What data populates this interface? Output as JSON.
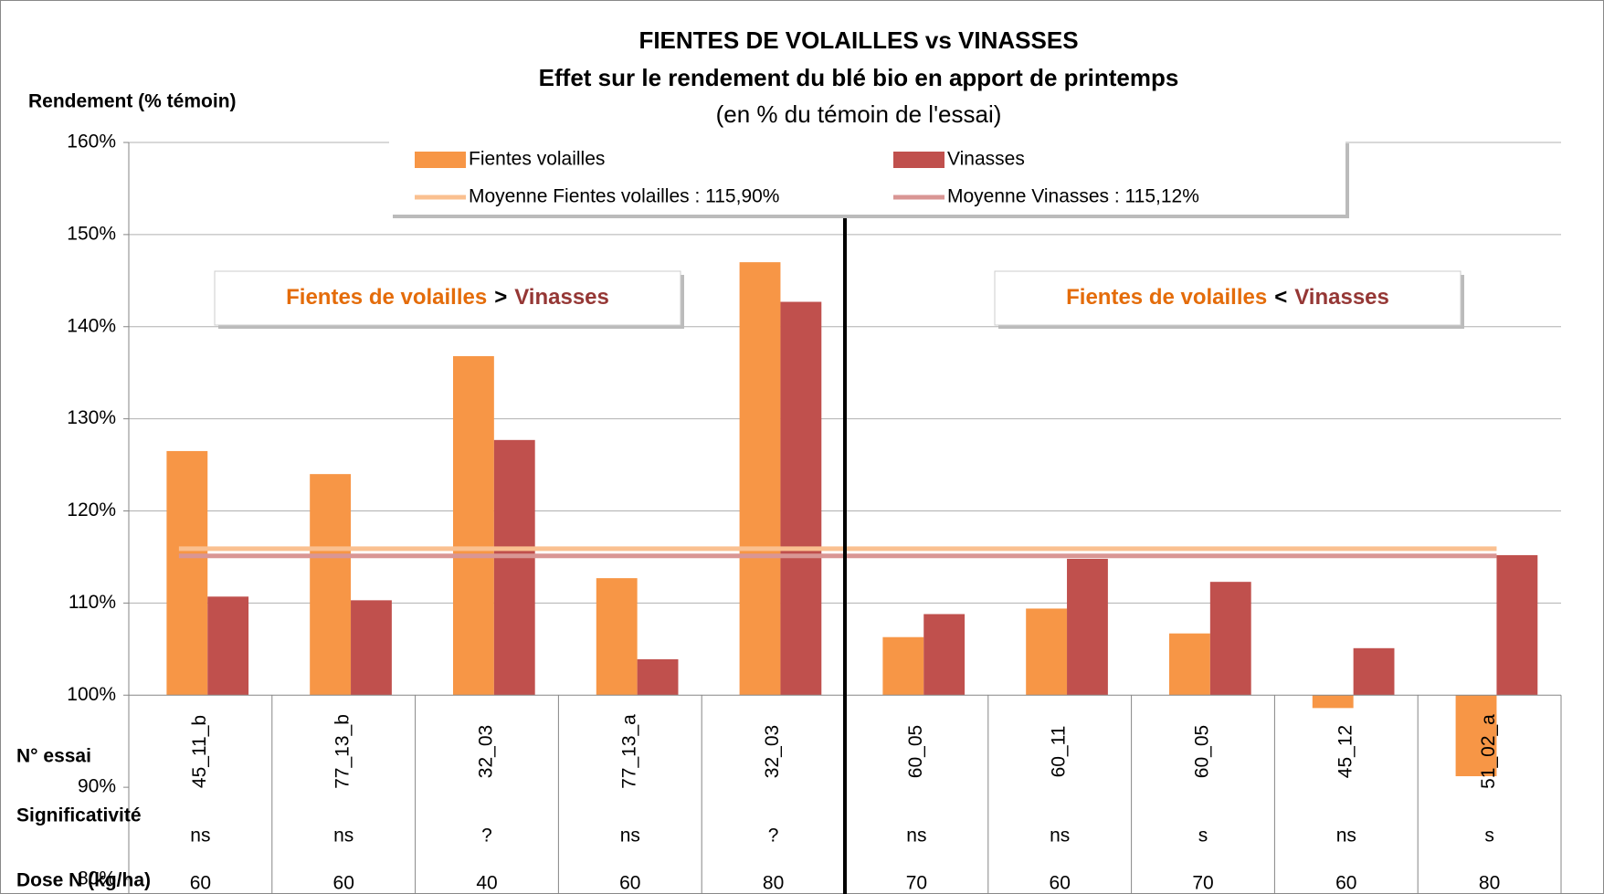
{
  "chart_data": {
    "type": "bar",
    "title": "FIENTES DE VOLAILLES vs VINASSES",
    "subtitle": "Effet sur le rendement du blé bio en apport de printemps",
    "subtitle2": "(en % du témoin de l'essai)",
    "y_axis_label": "Rendement (% témoin)",
    "categories": [
      "45_11_b",
      "77_13_b",
      "32_03",
      "77_13_a",
      "32_03",
      "60_05",
      "60_11",
      "60_05",
      "45_12",
      "51_02_a"
    ],
    "series": [
      {
        "name": "Fientes volailles",
        "color": "#f79646",
        "values": [
          126.5,
          124.0,
          136.8,
          112.7,
          147.0,
          106.3,
          109.4,
          106.7,
          98.6,
          91.2
        ]
      },
      {
        "name": "Vinasses",
        "color": "#c0504d",
        "values": [
          110.7,
          110.3,
          127.7,
          103.9,
          142.7,
          108.8,
          114.8,
          112.3,
          105.1,
          115.2
        ]
      }
    ],
    "mean_lines": [
      {
        "name": "Moyenne Fientes volailles : 115,90%",
        "color": "#fac090",
        "value": 115.9
      },
      {
        "name": "Moyenne Vinasses : 115,12%",
        "color": "#d99694",
        "value": 115.12
      }
    ],
    "x_axis_at": 100,
    "ylim": [
      80,
      160
    ],
    "yticks": [
      {
        "value": 80,
        "label": "80%"
      },
      {
        "value": 90,
        "label": "90%"
      },
      {
        "value": 100,
        "label": "100%"
      },
      {
        "value": 110,
        "label": "110%"
      },
      {
        "value": 120,
        "label": "120%"
      },
      {
        "value": 130,
        "label": "130%"
      },
      {
        "value": 140,
        "label": "140%"
      },
      {
        "value": 150,
        "label": "150%"
      },
      {
        "value": 160,
        "label": "160%"
      }
    ],
    "grid": true,
    "annotations": [
      {
        "left": "Fientes de volailles",
        "sign": ">",
        "right": "Vinasses"
      },
      {
        "left": "Fientes de volailles",
        "sign": "<",
        "right": "Vinasses"
      }
    ],
    "table": {
      "row_labels": [
        "N° essai",
        "Significativité",
        "Dose N (kg/ha)"
      ],
      "significance": [
        "ns",
        "ns",
        "?",
        "ns",
        "?",
        "ns",
        "ns",
        "s",
        "ns",
        "s"
      ],
      "dose": [
        "60",
        "60",
        "40",
        "60",
        "80",
        "70",
        "60",
        "70",
        "60",
        "80"
      ]
    }
  }
}
